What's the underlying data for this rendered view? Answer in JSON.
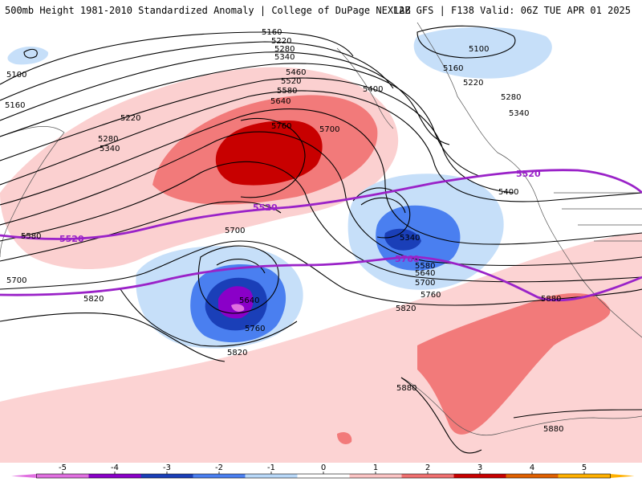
{
  "header": {
    "left_title": "500mb Height 1981-2010 Standardized Anomaly | College of DuPage NEXLAB",
    "right_title": "12Z GFS | F138 Valid: 06Z TUE APR 01 2025"
  },
  "contour_labels": {
    "l5160_top": "5160",
    "l5220_top": "5220",
    "l5280_top": "5280",
    "l5340_top": "5340",
    "l5460": "5460",
    "l5520_mid": "5520",
    "l5580": "5580",
    "l5640": "5640",
    "l5400_a": "5400",
    "l5760_a": "5760",
    "l5700_a": "5700",
    "l5100_left": "5100",
    "l5160_left": "5160",
    "l5220_left": "5220",
    "l5280_left": "5280",
    "l5340_left": "5340",
    "l5100_ne": "5100",
    "l5160_ne": "5160",
    "l5220_ne": "5220",
    "l5280_e": "5280",
    "l5340_e": "5340",
    "l5400_e": "5400",
    "l5520_purple_w": "5520",
    "l5520_purple_c": "5520",
    "l5520_purple_e": "5520",
    "l5580_w": "5580",
    "l5700_w": "5700",
    "l5700_mid": "5700",
    "l5820_w": "5820",
    "l5640_low": "5640",
    "l5760_low": "5760",
    "l5820_low": "5820",
    "l5340_ec": "5340",
    "l5760_purple": "5760",
    "l5580_ec": "5580",
    "l5640_ec": "5640",
    "l5700_ec": "5700",
    "l5760_ec": "5760",
    "l5820_ec": "5820",
    "l5880_e": "5880",
    "l5880_s": "5880",
    "l5880_se": "5880"
  },
  "colorbar": {
    "ticks": [
      "-5",
      "-4",
      "-3",
      "-2",
      "-1",
      "0",
      "1",
      "2",
      "3",
      "4",
      "5"
    ],
    "colors": [
      "#e070e0",
      "#8a00c8",
      "#1a3fb8",
      "#4a7ff0",
      "#b8d8f8",
      "#ffffff",
      "#fbc4c4",
      "#f07070",
      "#c80000",
      "#e06000",
      "#ffb000"
    ]
  }
}
